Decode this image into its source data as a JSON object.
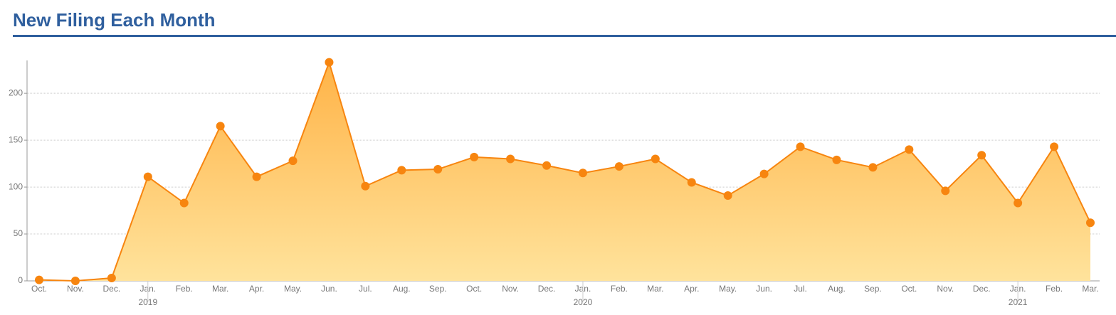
{
  "chart_data": {
    "type": "area",
    "title": "New Filing Each Month",
    "categories": [
      "Oct.",
      "Nov.",
      "Dec.",
      "Jan.",
      "Feb.",
      "Mar.",
      "Apr.",
      "May.",
      "Jun.",
      "Jul.",
      "Aug.",
      "Sep.",
      "Oct.",
      "Nov.",
      "Dec.",
      "Jan.",
      "Feb.",
      "Mar.",
      "Apr.",
      "May.",
      "Jun.",
      "Jul.",
      "Aug.",
      "Sep.",
      "Oct.",
      "Nov.",
      "Dec.",
      "Jan.",
      "Feb.",
      "Mar."
    ],
    "x_groups": [
      null,
      null,
      null,
      "2019",
      null,
      null,
      null,
      null,
      null,
      null,
      null,
      null,
      null,
      null,
      null,
      "2020",
      null,
      null,
      null,
      null,
      null,
      null,
      null,
      null,
      null,
      null,
      null,
      "2021",
      null,
      null
    ],
    "values": [
      1,
      0,
      3,
      111,
      83,
      165,
      111,
      128,
      233,
      101,
      118,
      119,
      132,
      130,
      123,
      115,
      122,
      130,
      105,
      91,
      114,
      143,
      129,
      121,
      140,
      96,
      134,
      83,
      143,
      62
    ],
    "color": "#f7850f",
    "fill_top": "#ffb347",
    "fill_bottom": "#ffe39c",
    "ylim": [
      0,
      235
    ],
    "yticks": [
      0,
      50,
      100,
      150,
      200
    ],
    "grid": true
  }
}
